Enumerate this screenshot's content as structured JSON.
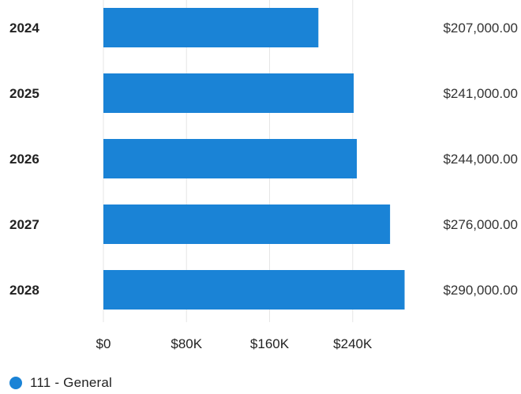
{
  "chart_data": {
    "type": "bar",
    "orientation": "horizontal",
    "categories": [
      "2024",
      "2025",
      "2026",
      "2027",
      "2028"
    ],
    "series": [
      {
        "name": "111 - General",
        "values": [
          207000,
          241000,
          244000,
          276000,
          290000
        ],
        "value_labels": [
          "$207,000.00",
          "$241,000.00",
          "$244,000.00",
          "$276,000.00",
          "$290,000.00"
        ]
      }
    ],
    "x_ticks": [
      0,
      80000,
      160000,
      240000
    ],
    "x_tick_labels": [
      "$0",
      "$80K",
      "$160K",
      "$240K"
    ],
    "xlim": [
      0,
      320000
    ],
    "grid": "vertical",
    "legend_position": "bottom-left"
  },
  "colors": {
    "bar": "#1a83d6",
    "grid": "#e6e6e6",
    "category_text": "#222222",
    "value_text": "#333333",
    "tick_text": "#222222"
  },
  "legend": {
    "label": "111 - General"
  }
}
